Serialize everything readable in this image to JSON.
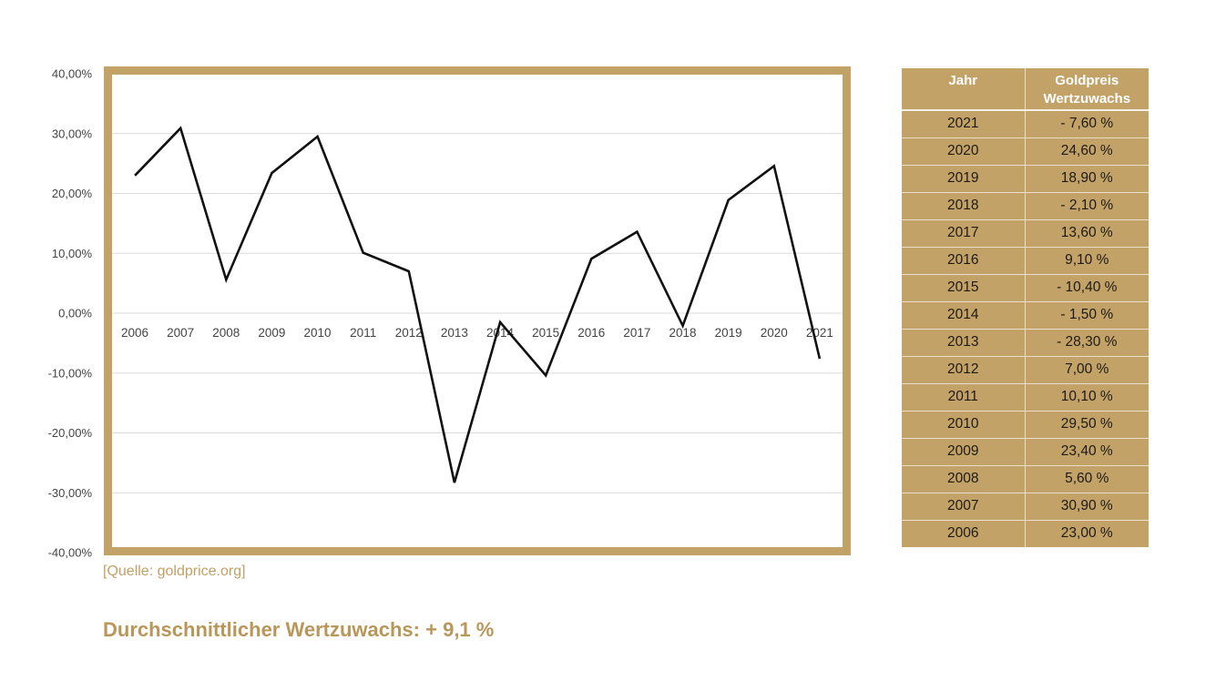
{
  "colors": {
    "gold": "#c3a267",
    "gold_text": "#b99659",
    "line": "#111111",
    "grid": "#dcdcdc"
  },
  "chart_data": {
    "type": "line",
    "x": [
      "2006",
      "2007",
      "2008",
      "2009",
      "2010",
      "2011",
      "2012",
      "2013",
      "2014",
      "2015",
      "2016",
      "2017",
      "2018",
      "2019",
      "2020",
      "2021"
    ],
    "series": [
      {
        "values": [
          23.0,
          30.9,
          5.6,
          23.4,
          29.5,
          10.1,
          7.0,
          -28.3,
          -1.5,
          -10.4,
          9.1,
          13.6,
          -2.1,
          18.9,
          24.6,
          -7.6
        ]
      }
    ],
    "ylim": [
      -40,
      40
    ],
    "yticks": [
      40,
      30,
      20,
      10,
      0,
      -10,
      -20,
      -30,
      -40
    ],
    "ytick_labels": [
      "40,00%",
      "30,00%",
      "20,00%",
      "10,00%",
      "0,00%",
      "-10,00%",
      "-20,00%",
      "-30,00%",
      "-40,00%"
    ],
    "grid": true,
    "legend": "none",
    "frame_color": "#c3a267"
  },
  "source": "[Quelle: goldprice.org]",
  "summary": {
    "label": "Durchschnittlicher Wertzuwachs:",
    "value": "+ 9,1 %"
  },
  "table": {
    "header_year": "Jahr",
    "header_value_line1": "Goldpreis",
    "header_value_line2": "Wertzuwachs",
    "rows": [
      {
        "year": "2021",
        "value": "- 7,60 %"
      },
      {
        "year": "2020",
        "value": "24,60 %"
      },
      {
        "year": "2019",
        "value": "18,90 %"
      },
      {
        "year": "2018",
        "value": "- 2,10 %"
      },
      {
        "year": "2017",
        "value": "13,60 %"
      },
      {
        "year": "2016",
        "value": "9,10 %"
      },
      {
        "year": "2015",
        "value": "- 10,40 %"
      },
      {
        "year": "2014",
        "value": "- 1,50 %"
      },
      {
        "year": "2013",
        "value": "- 28,30 %"
      },
      {
        "year": "2012",
        "value": "7,00 %"
      },
      {
        "year": "2011",
        "value": "10,10 %"
      },
      {
        "year": "2010",
        "value": "29,50 %"
      },
      {
        "year": "2009",
        "value": "23,40 %"
      },
      {
        "year": "2008",
        "value": "5,60 %"
      },
      {
        "year": "2007",
        "value": "30,90 %"
      },
      {
        "year": "2006",
        "value": "23,00 %"
      }
    ]
  }
}
